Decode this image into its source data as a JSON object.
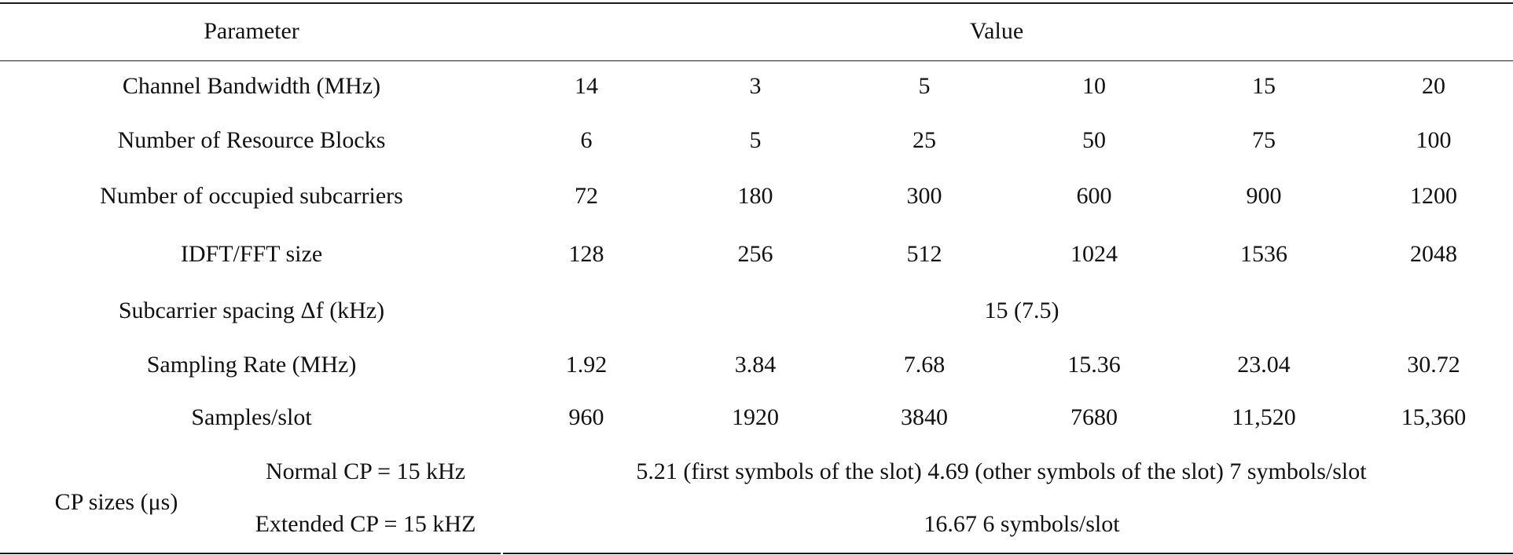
{
  "table": {
    "header": {
      "parameter": "Parameter",
      "value": "Value"
    },
    "rows": [
      {
        "label": "Channel Bandwidth (MHz)",
        "values": [
          "14",
          "3",
          "5",
          "10",
          "15",
          "20"
        ]
      },
      {
        "label": "Number of Resource Blocks",
        "values": [
          "6",
          "5",
          "25",
          "50",
          "75",
          "100"
        ]
      },
      {
        "label": "Number of occupied subcarriers",
        "values": [
          "72",
          "180",
          "300",
          "600",
          "900",
          "1200"
        ]
      },
      {
        "label": "IDFT/FFT size",
        "values": [
          "128",
          "256",
          "512",
          "1024",
          "1536",
          "2048"
        ]
      },
      {
        "label": "Subcarrier spacing Δf (kHz)",
        "merged_value": "15 (7.5)"
      },
      {
        "label": "Sampling Rate (MHz)",
        "values": [
          "1.92",
          "3.84",
          "7.68",
          "15.36",
          "23.04",
          "30.72"
        ]
      },
      {
        "label": "Samples/slot",
        "values": [
          "960",
          "1920",
          "3840",
          "7680",
          "11,520",
          "15,360"
        ]
      }
    ],
    "cp_sizes": {
      "label": "CP sizes (μs)",
      "normal": {
        "label": "Normal CP = 15 kHz",
        "value": "5.21 (first symbols of the slot) 4.69 (other symbols of the slot) 7 symbols/slot"
      },
      "extended": {
        "label": "Extended CP = 15 kHZ",
        "value": "16.67 6 symbols/slot"
      }
    }
  }
}
